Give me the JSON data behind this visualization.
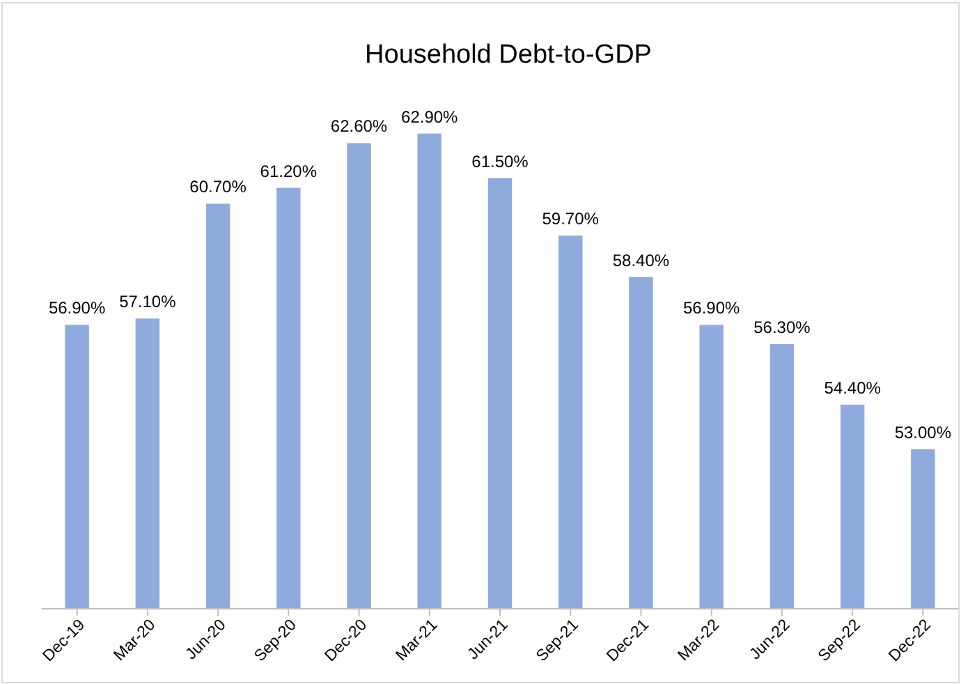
{
  "chart_data": {
    "type": "bar",
    "title": "Household Debt-to-GDP",
    "categories": [
      "Dec-19",
      "Mar-20",
      "Jun-20",
      "Sep-20",
      "Dec-20",
      "Mar-21",
      "Jun-21",
      "Sep-21",
      "Dec-21",
      "Mar-22",
      "Jun-22",
      "Sep-22",
      "Dec-22"
    ],
    "values": [
      56.9,
      57.1,
      60.7,
      61.2,
      62.6,
      62.9,
      61.5,
      59.7,
      58.4,
      56.9,
      56.3,
      54.4,
      53.0
    ],
    "value_labels": [
      "56.90%",
      "57.10%",
      "60.70%",
      "61.20%",
      "62.60%",
      "62.90%",
      "61.50%",
      "59.70%",
      "58.40%",
      "56.90%",
      "56.30%",
      "54.40%",
      "53.00%"
    ],
    "color": "#8faadc",
    "ylim": [
      48,
      67
    ],
    "tick_labels": "x"
  }
}
